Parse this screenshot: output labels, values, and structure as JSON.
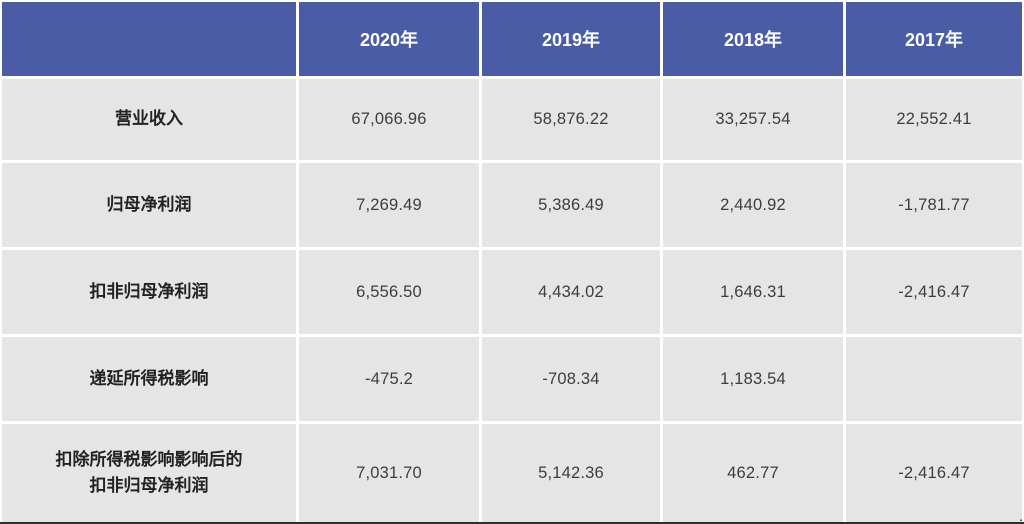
{
  "colors": {
    "header_bg": "#4A5CA6",
    "header_text": "#FFFFFF",
    "cell_bg": "#E5E5E5",
    "label_text": "#222222",
    "value_text": "#3D3D3D",
    "separator": "#FFFFFF",
    "bottom_border": "#2E2E2E"
  },
  "table": {
    "header": [
      "",
      "2020年",
      "2019年",
      "2018年",
      "2017年"
    ],
    "rows": [
      {
        "label": "营业收入",
        "values": [
          "67,066.96",
          "58,876.22",
          "33,257.54",
          "22,552.41"
        ]
      },
      {
        "label": "归母净利润",
        "values": [
          "7,269.49",
          "5,386.49",
          "2,440.92",
          "-1,781.77"
        ]
      },
      {
        "label": "扣非归母净利润",
        "values": [
          "6,556.50",
          "4,434.02",
          "1,646.31",
          "-2,416.47"
        ]
      },
      {
        "label": "递延所得税影响",
        "values": [
          "-475.2",
          "-708.34",
          "1,183.54",
          ""
        ]
      },
      {
        "label": "扣除所得税影响影响后的\n扣非归母净利润",
        "values": [
          "7,031.70",
          "5,142.36",
          "462.77",
          "-2,416.47"
        ]
      }
    ]
  },
  "trailing_period": ".",
  "chart_data": {
    "type": "table",
    "columns": [
      "",
      "2020年",
      "2019年",
      "2018年",
      "2017年"
    ],
    "rows": [
      {
        "label": "营业收入",
        "values": [
          67066.96,
          58876.22,
          33257.54,
          22552.41
        ]
      },
      {
        "label": "归母净利润",
        "values": [
          7269.49,
          5386.49,
          2440.92,
          -1781.77
        ]
      },
      {
        "label": "扣非归母净利润",
        "values": [
          6556.5,
          4434.02,
          1646.31,
          -2416.47
        ]
      },
      {
        "label": "递延所得税影响",
        "values": [
          -475.2,
          -708.34,
          1183.54,
          null
        ]
      },
      {
        "label": "扣除所得税影响影响后的扣非归母净利润",
        "values": [
          7031.7,
          5142.36,
          462.77,
          -2416.47
        ]
      }
    ],
    "title": "",
    "notes": "financial summary table; header row blue, body gray, values likely in 万元 (unit not shown)"
  }
}
